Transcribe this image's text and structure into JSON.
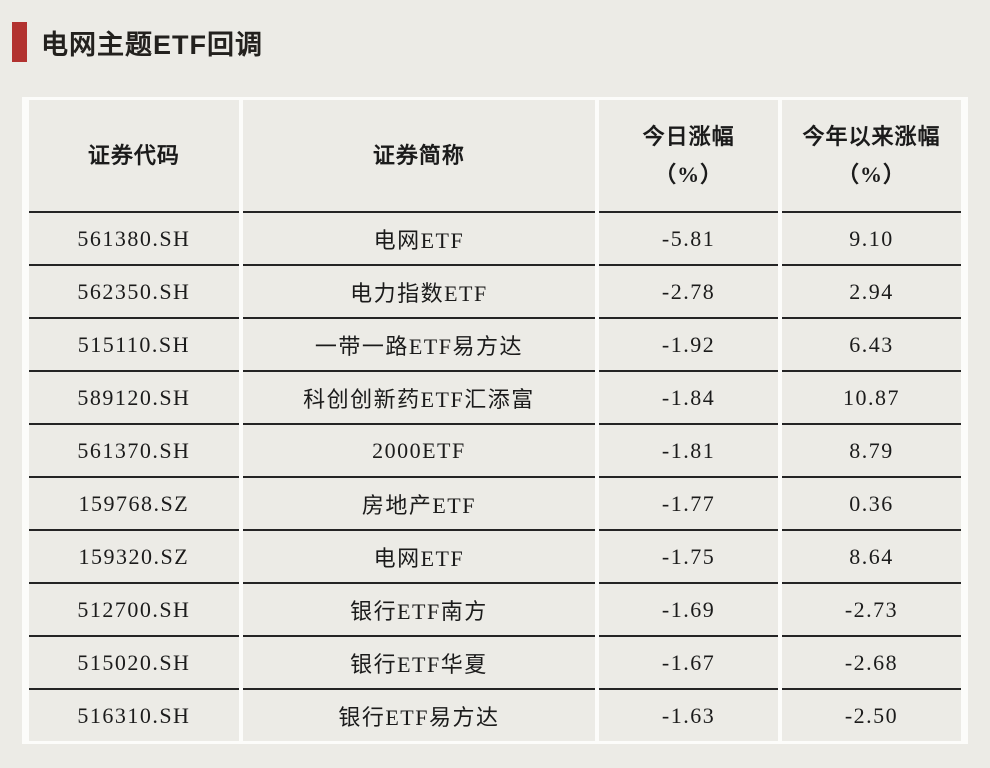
{
  "title": {
    "text": "电网主题ETF回调"
  },
  "colors": {
    "page_background": "#ECEBE6",
    "accent_red": "#B23230",
    "row_separator_dark": "#242424",
    "column_separator_light": "#FCFCFA",
    "text": "#1B1B1B"
  },
  "table": {
    "headers": [
      {
        "main": "证券代码",
        "sub": ""
      },
      {
        "main": "证券简称",
        "sub": ""
      },
      {
        "main": "今日涨幅",
        "sub": "（%）"
      },
      {
        "main": "今年以来涨幅",
        "sub": "（%）"
      }
    ]
  },
  "chart_data": {
    "type": "table",
    "title": "电网主题ETF回调",
    "columns": [
      "证券代码",
      "证券简称",
      "今日涨幅（%）",
      "今年以来涨幅（%）"
    ],
    "rows": [
      [
        "561380.SH",
        "电网ETF",
        "-5.81",
        "9.10"
      ],
      [
        "562350.SH",
        "电力指数ETF",
        "-2.78",
        "2.94"
      ],
      [
        "515110.SH",
        "一带一路ETF易方达",
        "-1.92",
        "6.43"
      ],
      [
        "589120.SH",
        "科创创新药ETF汇添富",
        "-1.84",
        "10.87"
      ],
      [
        "561370.SH",
        "2000ETF",
        "-1.81",
        "8.79"
      ],
      [
        "159768.SZ",
        "房地产ETF",
        "-1.77",
        "0.36"
      ],
      [
        "159320.SZ",
        "电网ETF",
        "-1.75",
        "8.64"
      ],
      [
        "512700.SH",
        "银行ETF南方",
        "-1.69",
        "-2.73"
      ],
      [
        "515020.SH",
        "银行ETF华夏",
        "-1.67",
        "-2.68"
      ],
      [
        "516310.SH",
        "银行ETF易方达",
        "-1.63",
        "-2.50"
      ]
    ]
  }
}
